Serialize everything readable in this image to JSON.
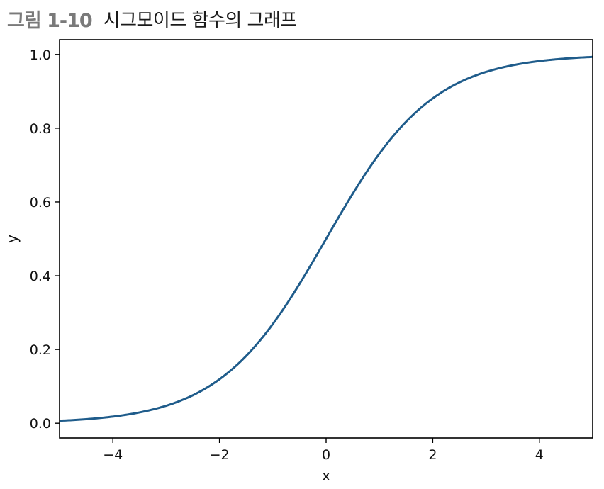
{
  "figure": {
    "label": "그림 1-10",
    "caption": "시그모이드 함수의 그래프"
  },
  "colors": {
    "curve": "#1f5c8b",
    "axes": "#000000",
    "caption_label": "#7a7a7a"
  },
  "chart_data": {
    "type": "line",
    "function": "1 / (1 + exp(-x))",
    "title": "",
    "xlabel": "x",
    "ylabel": "y",
    "xlim": [
      -5,
      5
    ],
    "ylim": [
      -0.04,
      1.04
    ],
    "grid": false,
    "legend": "none",
    "xticks": [
      -4,
      -2,
      0,
      2,
      4
    ],
    "xtick_labels": [
      "−4",
      "−2",
      "0",
      "2",
      "4"
    ],
    "yticks": [
      0.0,
      0.2,
      0.4,
      0.6,
      0.8,
      1.0
    ],
    "ytick_labels": [
      "0.0",
      "0.2",
      "0.4",
      "0.6",
      "0.8",
      "1.0"
    ],
    "series": [
      {
        "x": [
          -5,
          -4.5,
          -4,
          -3.5,
          -3,
          -2.5,
          -2,
          -1.5,
          -1,
          -0.5,
          0,
          0.5,
          1,
          1.5,
          2,
          2.5,
          3,
          3.5,
          4,
          4.5,
          5
        ],
        "y": [
          0.0067,
          0.011,
          0.018,
          0.0293,
          0.0474,
          0.0759,
          0.1192,
          0.1824,
          0.2689,
          0.3775,
          0.5,
          0.6225,
          0.7311,
          0.8176,
          0.8808,
          0.9241,
          0.9526,
          0.9707,
          0.982,
          0.989,
          0.9933
        ]
      }
    ]
  }
}
